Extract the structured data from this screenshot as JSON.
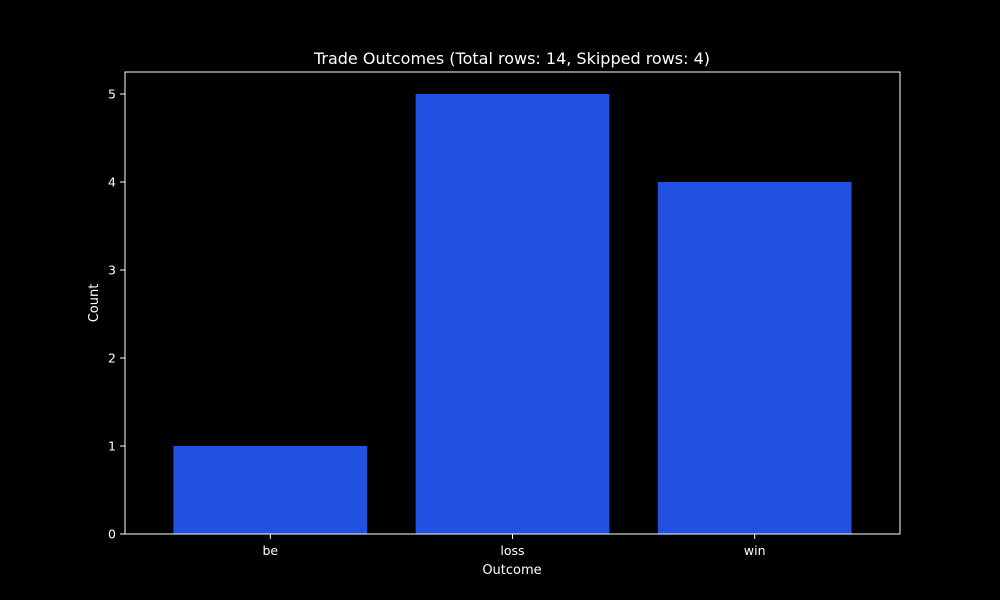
{
  "chart_data": {
    "type": "bar",
    "title": "Trade Outcomes (Total rows: 14, Skipped rows: 4)",
    "xlabel": "Outcome",
    "ylabel": "Count",
    "categories": [
      "be",
      "loss",
      "win"
    ],
    "values": [
      1,
      5,
      4
    ],
    "ylim": [
      0,
      5.25
    ],
    "yticks": [
      0,
      1,
      2,
      3,
      4,
      5
    ],
    "grid": false,
    "colors": {
      "background": "#000000",
      "bar": "#2250e0",
      "axes": "#ffffff",
      "text": "#ffffff"
    }
  }
}
